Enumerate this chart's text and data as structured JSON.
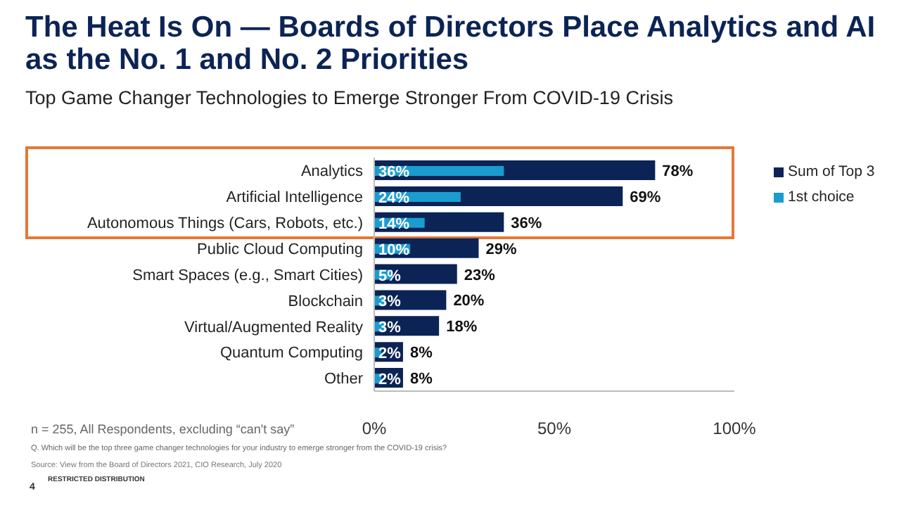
{
  "chart_data": {
    "type": "bar",
    "orientation": "horizontal",
    "title": "The Heat Is On — Boards of Directors Place Analytics and AI as the No. 1 and No. 2 Priorities",
    "subtitle": "Top Game Changer Technologies to Emerge Stronger From COVID-19 Crisis",
    "categories": [
      "Analytics",
      "Artificial Intelligence",
      "Autonomous Things (Cars, Robots, etc.)",
      "Public Cloud Computing",
      "Smart Spaces (e.g., Smart Cities)",
      "Blockchain",
      "Virtual/Augmented Reality",
      "Quantum Computing",
      "Other"
    ],
    "series": [
      {
        "name": "Sum of Top 3",
        "color": "#0b2455",
        "values": [
          78,
          69,
          36,
          29,
          23,
          20,
          18,
          8,
          8
        ],
        "value_labels": [
          "78%",
          "69%",
          "36%",
          "29%",
          "23%",
          "20%",
          "18%",
          "8%",
          "8%"
        ]
      },
      {
        "name": "1st choice",
        "color": "#1b9ccf",
        "values": [
          36,
          24,
          14,
          10,
          5,
          3,
          3,
          2,
          2
        ],
        "value_labels": [
          "36%",
          "24%",
          "14%",
          "10%",
          "5%",
          "3%",
          "3%",
          "2%",
          "2%"
        ]
      }
    ],
    "xlim": [
      0,
      100
    ],
    "xticks": [
      {
        "value": 0,
        "label": "0%"
      },
      {
        "value": 50,
        "label": "50%"
      },
      {
        "value": 100,
        "label": "100%"
      }
    ],
    "legend": "right",
    "grid": false,
    "annotations": [
      "n = 255, All Respondents, excluding “can't say”",
      "Q. Which will be the top three game changer technologies for your industry to emerge stronger from the COVID-19 crisis?",
      "Source: View from the Board of Directors 2021, CIO Research, July 2020",
      "RESTRICTED DISTRIBUTION",
      "4"
    ]
  }
}
